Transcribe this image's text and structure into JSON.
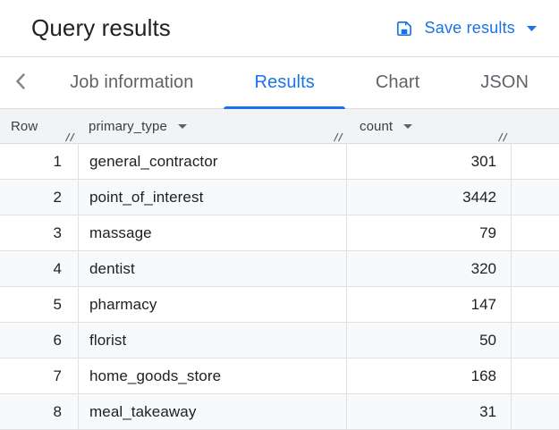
{
  "header": {
    "title": "Query results",
    "save_button_label": "Save results"
  },
  "tabs": [
    {
      "label": "Job information",
      "active": false
    },
    {
      "label": "Results",
      "active": true
    },
    {
      "label": "Chart",
      "active": false
    },
    {
      "label": "JSON",
      "active": false
    }
  ],
  "table": {
    "columns": [
      {
        "label": "Row",
        "sortable": false
      },
      {
        "label": "primary_type",
        "sortable": true
      },
      {
        "label": "count",
        "sortable": true
      }
    ],
    "rows": [
      {
        "row_number": "1",
        "primary_type": "general_contractor",
        "count": "301"
      },
      {
        "row_number": "2",
        "primary_type": "point_of_interest",
        "count": "3442"
      },
      {
        "row_number": "3",
        "primary_type": "massage",
        "count": "79"
      },
      {
        "row_number": "4",
        "primary_type": "dentist",
        "count": "320"
      },
      {
        "row_number": "5",
        "primary_type": "pharmacy",
        "count": "147"
      },
      {
        "row_number": "6",
        "primary_type": "florist",
        "count": "50"
      },
      {
        "row_number": "7",
        "primary_type": "home_goods_store",
        "count": "168"
      },
      {
        "row_number": "8",
        "primary_type": "meal_takeaway",
        "count": "31"
      }
    ]
  },
  "icons": {
    "save": "save-icon",
    "dropdown": "caret-down-icon",
    "back": "chevron-left-icon",
    "resize": "column-resize-icon"
  },
  "colors": {
    "accent": "#1a73e8",
    "title_text": "#202124",
    "tab_inactive_text": "#5f6368",
    "header_bg": "#f1f3f4",
    "row_stripe": "#f8f9fa",
    "grid_border": "#e0e0e0",
    "section_border": "#dadce0"
  }
}
